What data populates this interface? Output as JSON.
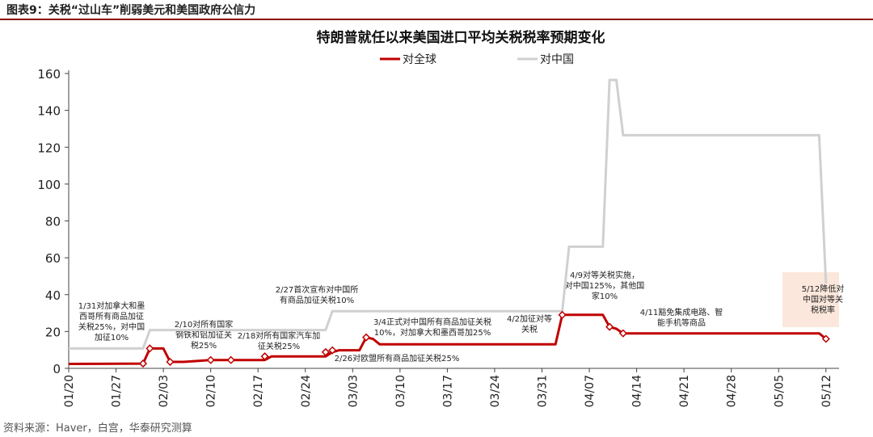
{
  "figure": {
    "label": "图表9：",
    "title": "关税“过山车”削弱美元和美国政府公信力",
    "source": "资料来源：Haver，白宫，华泰研究测算"
  },
  "chart_data": {
    "type": "line",
    "title": "特朗普就任以来美国进口平均关税税率预期变化",
    "xlabel": "",
    "ylabel": "",
    "ylim": [
      0,
      160
    ],
    "yticks": [
      0,
      20,
      40,
      60,
      80,
      100,
      120,
      140,
      160
    ],
    "xlim": [
      "2025-01-20",
      "2025-05-13"
    ],
    "xtick_dates": [
      "2025-01-20",
      "2025-01-27",
      "2025-02-03",
      "2025-02-10",
      "2025-02-17",
      "2025-02-24",
      "2025-03-03",
      "2025-03-10",
      "2025-03-17",
      "2025-03-24",
      "2025-03-31",
      "2025-04-07",
      "2025-04-14",
      "2025-04-21",
      "2025-04-28",
      "2025-05-05",
      "2025-05-12"
    ],
    "xtick_labels": [
      "01/20",
      "01/27",
      "02/03",
      "02/10",
      "02/17",
      "02/24",
      "03/03",
      "03/10",
      "03/17",
      "03/24",
      "03/31",
      "04/07",
      "04/14",
      "04/21",
      "04/28",
      "05/05",
      "05/12"
    ],
    "grid": false,
    "legend_position": "top-center",
    "series": [
      {
        "name": "对全球",
        "color": "#c00000",
        "points": [
          [
            "2025-01-20",
            2.4
          ],
          [
            "2025-01-31",
            2.6
          ],
          [
            "2025-02-01",
            10.8
          ],
          [
            "2025-02-03",
            10.8
          ],
          [
            "2025-02-04",
            3.5
          ],
          [
            "2025-02-06",
            3.5
          ],
          [
            "2025-02-10",
            4.5
          ],
          [
            "2025-02-18",
            4.5
          ],
          [
            "2025-02-19",
            6.5
          ],
          [
            "2025-02-27",
            6.5
          ],
          [
            "2025-02-28",
            8.8
          ],
          [
            "2025-03-01",
            9.8
          ],
          [
            "2025-03-04",
            9.8
          ],
          [
            "2025-03-05",
            16.8
          ],
          [
            "2025-03-06",
            16.0
          ],
          [
            "2025-03-07",
            13.0
          ],
          [
            "2025-04-02",
            13.0
          ],
          [
            "2025-04-03",
            29.0
          ],
          [
            "2025-04-09",
            29.0
          ],
          [
            "2025-04-10",
            22.5
          ],
          [
            "2025-04-11",
            21.5
          ],
          [
            "2025-04-12",
            19.0
          ],
          [
            "2025-05-11",
            19.0
          ],
          [
            "2025-05-12",
            16.0
          ]
        ],
        "markers": [
          [
            "2025-01-31",
            2.6
          ],
          [
            "2025-02-01",
            10.8
          ],
          [
            "2025-02-04",
            3.5
          ],
          [
            "2025-02-10",
            4.5
          ],
          [
            "2025-02-13",
            4.5
          ],
          [
            "2025-02-18",
            6.5
          ],
          [
            "2025-02-27",
            8.8
          ],
          [
            "2025-02-28",
            9.8
          ],
          [
            "2025-03-05",
            16.8
          ],
          [
            "2025-04-03",
            29.0
          ],
          [
            "2025-04-10",
            22.5
          ],
          [
            "2025-04-12",
            19.0
          ],
          [
            "2025-05-12",
            16.0
          ]
        ]
      },
      {
        "name": "对中国",
        "color": "#d0d0d0",
        "points": [
          [
            "2025-01-20",
            10.8
          ],
          [
            "2025-01-31",
            10.8
          ],
          [
            "2025-02-01",
            20.8
          ],
          [
            "2025-02-27",
            20.8
          ],
          [
            "2025-02-28",
            31.0
          ],
          [
            "2025-04-03",
            31.0
          ],
          [
            "2025-04-04",
            66.0
          ],
          [
            "2025-04-09",
            66.0
          ],
          [
            "2025-04-10",
            156.5
          ],
          [
            "2025-04-11",
            156.5
          ],
          [
            "2025-04-12",
            126.5
          ],
          [
            "2025-05-11",
            126.5
          ],
          [
            "2025-05-12",
            46.0
          ]
        ]
      }
    ],
    "annotations": [
      {
        "lines": [
          "1/31对加拿大和墨",
          "西哥所有商品加征",
          "关税25%，对中国",
          "加征10%"
        ]
      },
      {
        "lines": [
          "2/10对所有国家",
          "钢铁和铝加征关",
          "税25%"
        ]
      },
      {
        "lines": [
          "2/18对所有国家汽车加",
          "征关税25%"
        ]
      },
      {
        "lines": [
          "2/27首次宣布对中国所",
          "有商品加征关税10%"
        ]
      },
      {
        "lines": [
          "2/26对欧盟所有商品加征关税25%"
        ]
      },
      {
        "lines": [
          "3/4正式对中国所有商品加征关税",
          "10%，对加拿大和墨西哥加25%"
        ]
      },
      {
        "lines": [
          "4/2加征对等",
          "关税"
        ]
      },
      {
        "lines": [
          "4/9对等关税实施，",
          "对中国125%，其他国",
          "家10%"
        ]
      },
      {
        "lines": [
          "4/11豁免集成电路、智",
          "能手机等商品"
        ]
      },
      {
        "lines": [
          "5/12降低对",
          "中国对等关",
          "税税率"
        ],
        "highlight": "#fbe7db"
      }
    ]
  }
}
